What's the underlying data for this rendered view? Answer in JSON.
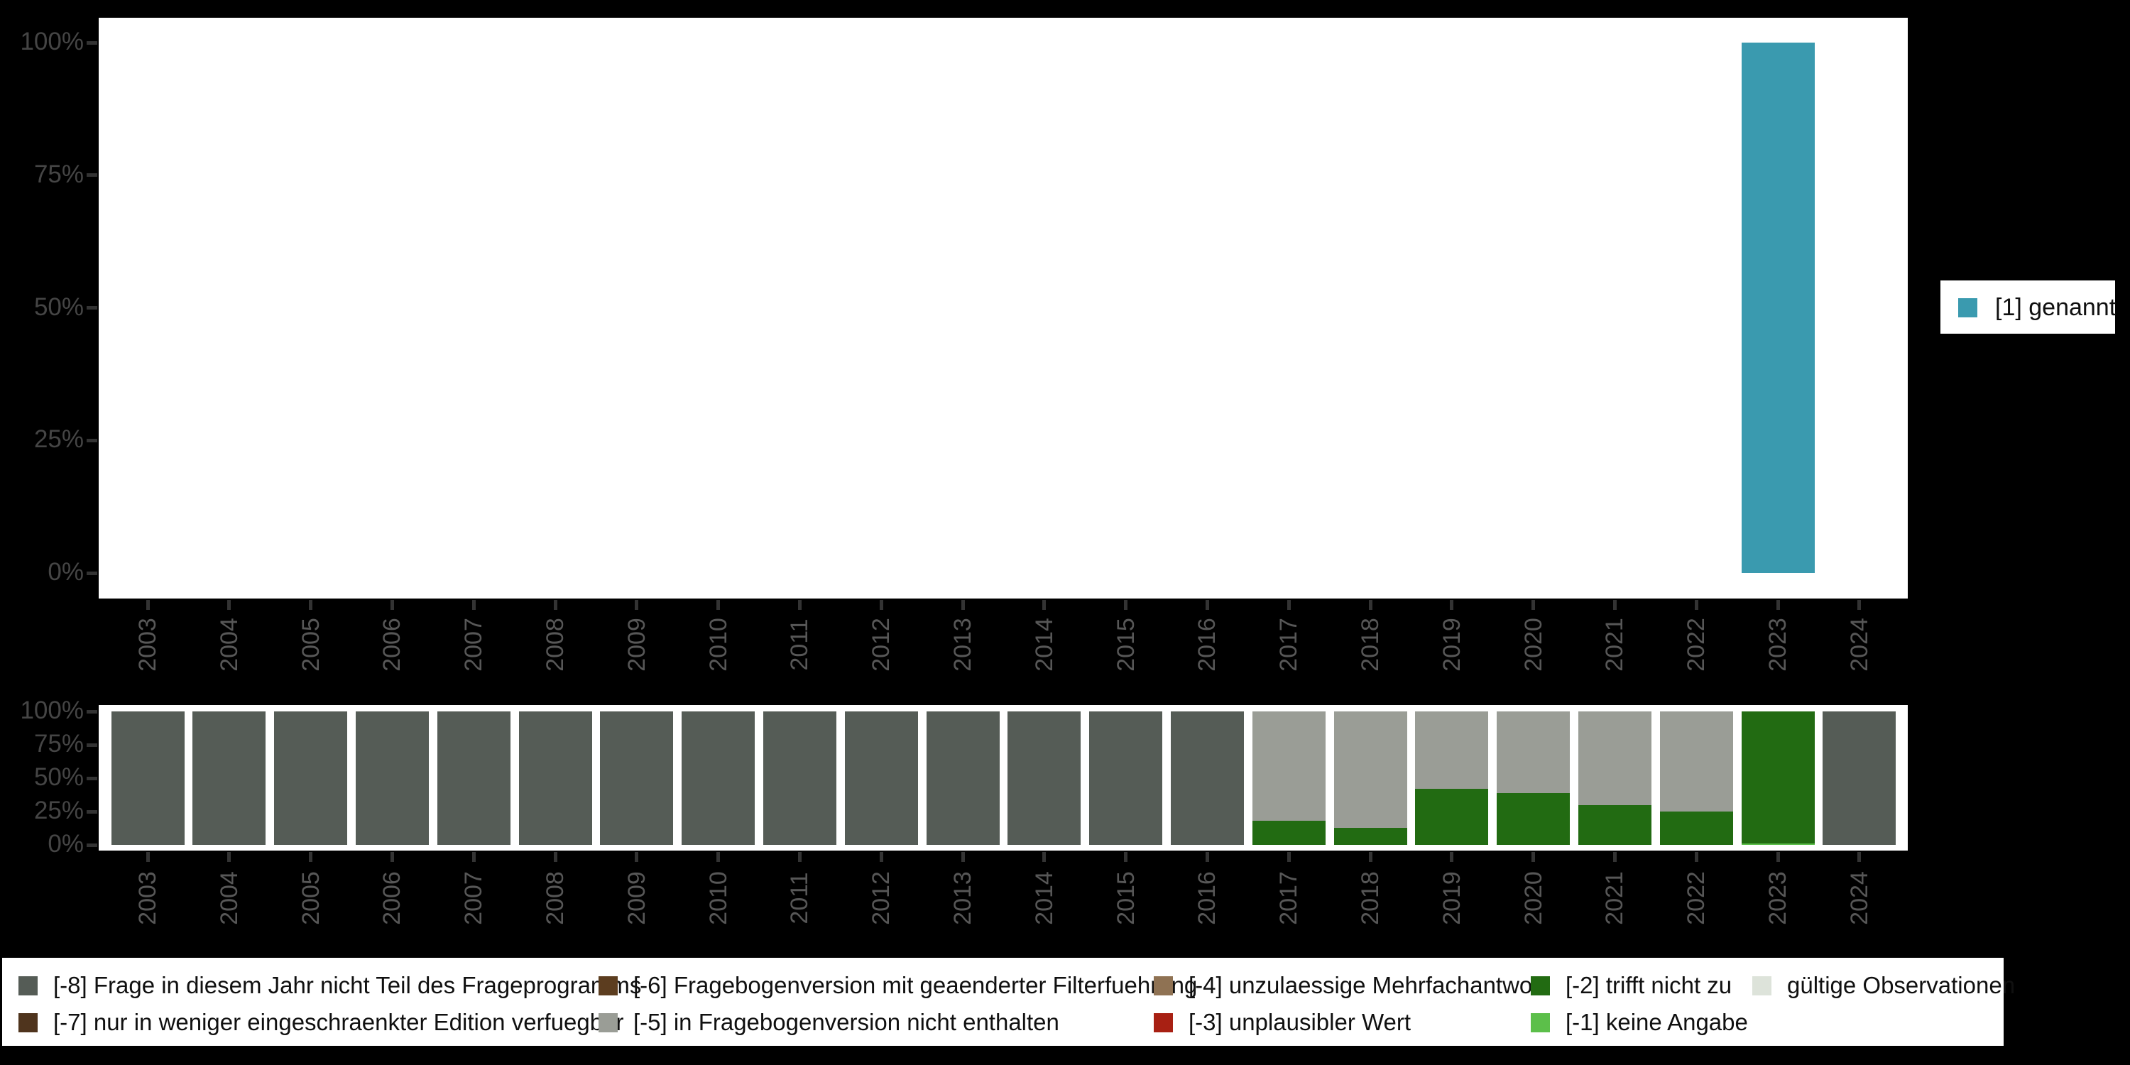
{
  "ui_colors": {
    "background": "#000000",
    "panel": "#ffffff",
    "axis_tick": "#333333",
    "axis_percent_text": "#454545",
    "axis_year_text": "#575757",
    "legend_text": "#101010"
  },
  "chart_data": [
    {
      "type": "bar",
      "title": "",
      "xlabel": "",
      "ylabel": "",
      "ylim": [
        0,
        100
      ],
      "grid": false,
      "legend_position": "right",
      "yticks": [
        "0%",
        "25%",
        "50%",
        "75%",
        "100%"
      ],
      "categories": [
        "2003",
        "2004",
        "2005",
        "2006",
        "2007",
        "2008",
        "2009",
        "2010",
        "2011",
        "2012",
        "2013",
        "2014",
        "2015",
        "2016",
        "2017",
        "2018",
        "2019",
        "2020",
        "2021",
        "2022",
        "2023",
        "2024"
      ],
      "series": [
        {
          "name": "[1] genannt",
          "color": "#3a9aaf",
          "values": [
            0,
            0,
            0,
            0,
            0,
            0,
            0,
            0,
            0,
            0,
            0,
            0,
            0,
            0,
            0,
            0,
            0,
            0,
            0,
            0,
            100,
            0
          ]
        }
      ]
    },
    {
      "type": "stacked-bar",
      "title": "",
      "xlabel": "",
      "ylabel": "",
      "ylim": [
        0,
        100
      ],
      "grid": false,
      "legend_position": "bottom",
      "yticks": [
        "0%",
        "25%",
        "50%",
        "75%",
        "100%"
      ],
      "categories": [
        "2003",
        "2004",
        "2005",
        "2006",
        "2007",
        "2008",
        "2009",
        "2010",
        "2011",
        "2012",
        "2013",
        "2014",
        "2015",
        "2016",
        "2017",
        "2018",
        "2019",
        "2020",
        "2021",
        "2022",
        "2023",
        "2024"
      ],
      "series": [
        {
          "name": "[-8] Frage in diesem Jahr nicht Teil des Frageprogramms",
          "color": "#555c56",
          "values": [
            100,
            100,
            100,
            100,
            100,
            100,
            100,
            100,
            100,
            100,
            100,
            100,
            100,
            100,
            0,
            0,
            0,
            0,
            0,
            0,
            0,
            100
          ]
        },
        {
          "name": "[-7] nur in weniger eingeschraenkter Edition verfuegbar",
          "color": "#4f341d",
          "values": [
            0,
            0,
            0,
            0,
            0,
            0,
            0,
            0,
            0,
            0,
            0,
            0,
            0,
            0,
            0,
            0,
            0,
            0,
            0,
            0,
            0,
            0
          ]
        },
        {
          "name": "[-6] Fragebogenversion mit geaenderter Filterfuehrung",
          "color": "#5c3d1f",
          "values": [
            0,
            0,
            0,
            0,
            0,
            0,
            0,
            0,
            0,
            0,
            0,
            0,
            0,
            0,
            0,
            0,
            0,
            0,
            0,
            0,
            0,
            0
          ]
        },
        {
          "name": "[-5] in Fragebogenversion nicht enthalten",
          "color": "#9a9d96",
          "values": [
            0,
            0,
            0,
            0,
            0,
            0,
            0,
            0,
            0,
            0,
            0,
            0,
            0,
            0,
            82,
            87,
            58,
            61,
            70,
            75,
            0,
            0
          ]
        },
        {
          "name": "[-4] unzulaessige Mehrfachantwort",
          "color": "#8f7253",
          "values": [
            0,
            0,
            0,
            0,
            0,
            0,
            0,
            0,
            0,
            0,
            0,
            0,
            0,
            0,
            0,
            0,
            0,
            0,
            0,
            0,
            0,
            0
          ]
        },
        {
          "name": "[-3] unplausibler Wert",
          "color": "#a82013",
          "values": [
            0,
            0,
            0,
            0,
            0,
            0,
            0,
            0,
            0,
            0,
            0,
            0,
            0,
            0,
            0,
            0,
            0,
            0,
            0,
            0,
            0,
            0
          ]
        },
        {
          "name": "[-2] trifft nicht zu",
          "color": "#226b12",
          "values": [
            0,
            0,
            0,
            0,
            0,
            0,
            0,
            0,
            0,
            0,
            0,
            0,
            0,
            0,
            18,
            13,
            42,
            39,
            30,
            25,
            99,
            0
          ]
        },
        {
          "name": "[-1] keine Angabe",
          "color": "#5cbf4a",
          "values": [
            0,
            0,
            0,
            0,
            0,
            0,
            0,
            0,
            0,
            0,
            0,
            0,
            0,
            0,
            0,
            0,
            0,
            0,
            0,
            0,
            1,
            0
          ]
        },
        {
          "name": "gültige Observationen",
          "color": "#dde3da",
          "values": [
            0,
            0,
            0,
            0,
            0,
            0,
            0,
            0,
            0,
            0,
            0,
            0,
            0,
            0,
            0,
            0,
            0,
            0,
            0,
            0,
            0,
            0
          ]
        }
      ]
    }
  ]
}
